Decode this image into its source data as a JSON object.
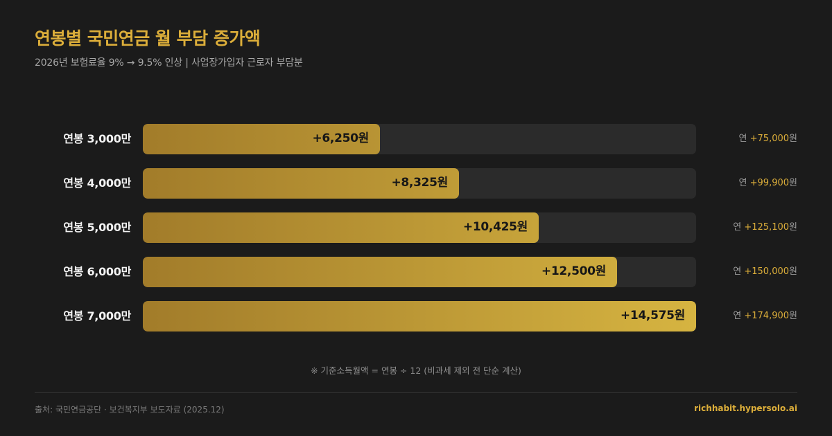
{
  "header": {
    "title": "연봉별 국민연금 월 부담 증가액",
    "subtitle": "2026년 보험료율 9% → 9.5% 인상 | 사업장가입자 근로자 부담분"
  },
  "chart_data": {
    "type": "bar",
    "orientation": "horizontal",
    "title": "연봉별 국민연금 월 부담 증가액",
    "subtitle": "2026년 보험료율 9% → 9.5% 인상 | 사업장가입자 근로자 부담분",
    "xlim": [
      0,
      14575
    ],
    "grid": false,
    "colors": {
      "bar_start": "#a27c2a",
      "bar_end": "#d6b441",
      "track": "#2b2b2b",
      "accent": "#dcae3a"
    },
    "categories": [
      "연봉 3,000만",
      "연봉 4,000만",
      "연봉 5,000만",
      "연봉 6,000만",
      "연봉 7,000만"
    ],
    "values": [
      6250,
      8325,
      10425,
      12500,
      14575
    ],
    "value_labels": [
      "+6,250원",
      "+8,325원",
      "+10,425원",
      "+12,500원",
      "+14,575원"
    ],
    "annual_prefix": "연",
    "annual_values": [
      75000,
      99900,
      125100,
      150000,
      174900
    ],
    "annual_labels": [
      "+75,000",
      "+99,900",
      "+125,100",
      "+150,000",
      "+174,900"
    ],
    "annual_unit": "원"
  },
  "footer": {
    "note": "※ 기준소득월액 = 연봉 ÷ 12 (비과세 제외 전 단순 계산)",
    "source": "출처: 국민연금공단 · 보건복지부 보도자료 (2025.12)",
    "site": "richhabit.hypersolo.ai"
  }
}
